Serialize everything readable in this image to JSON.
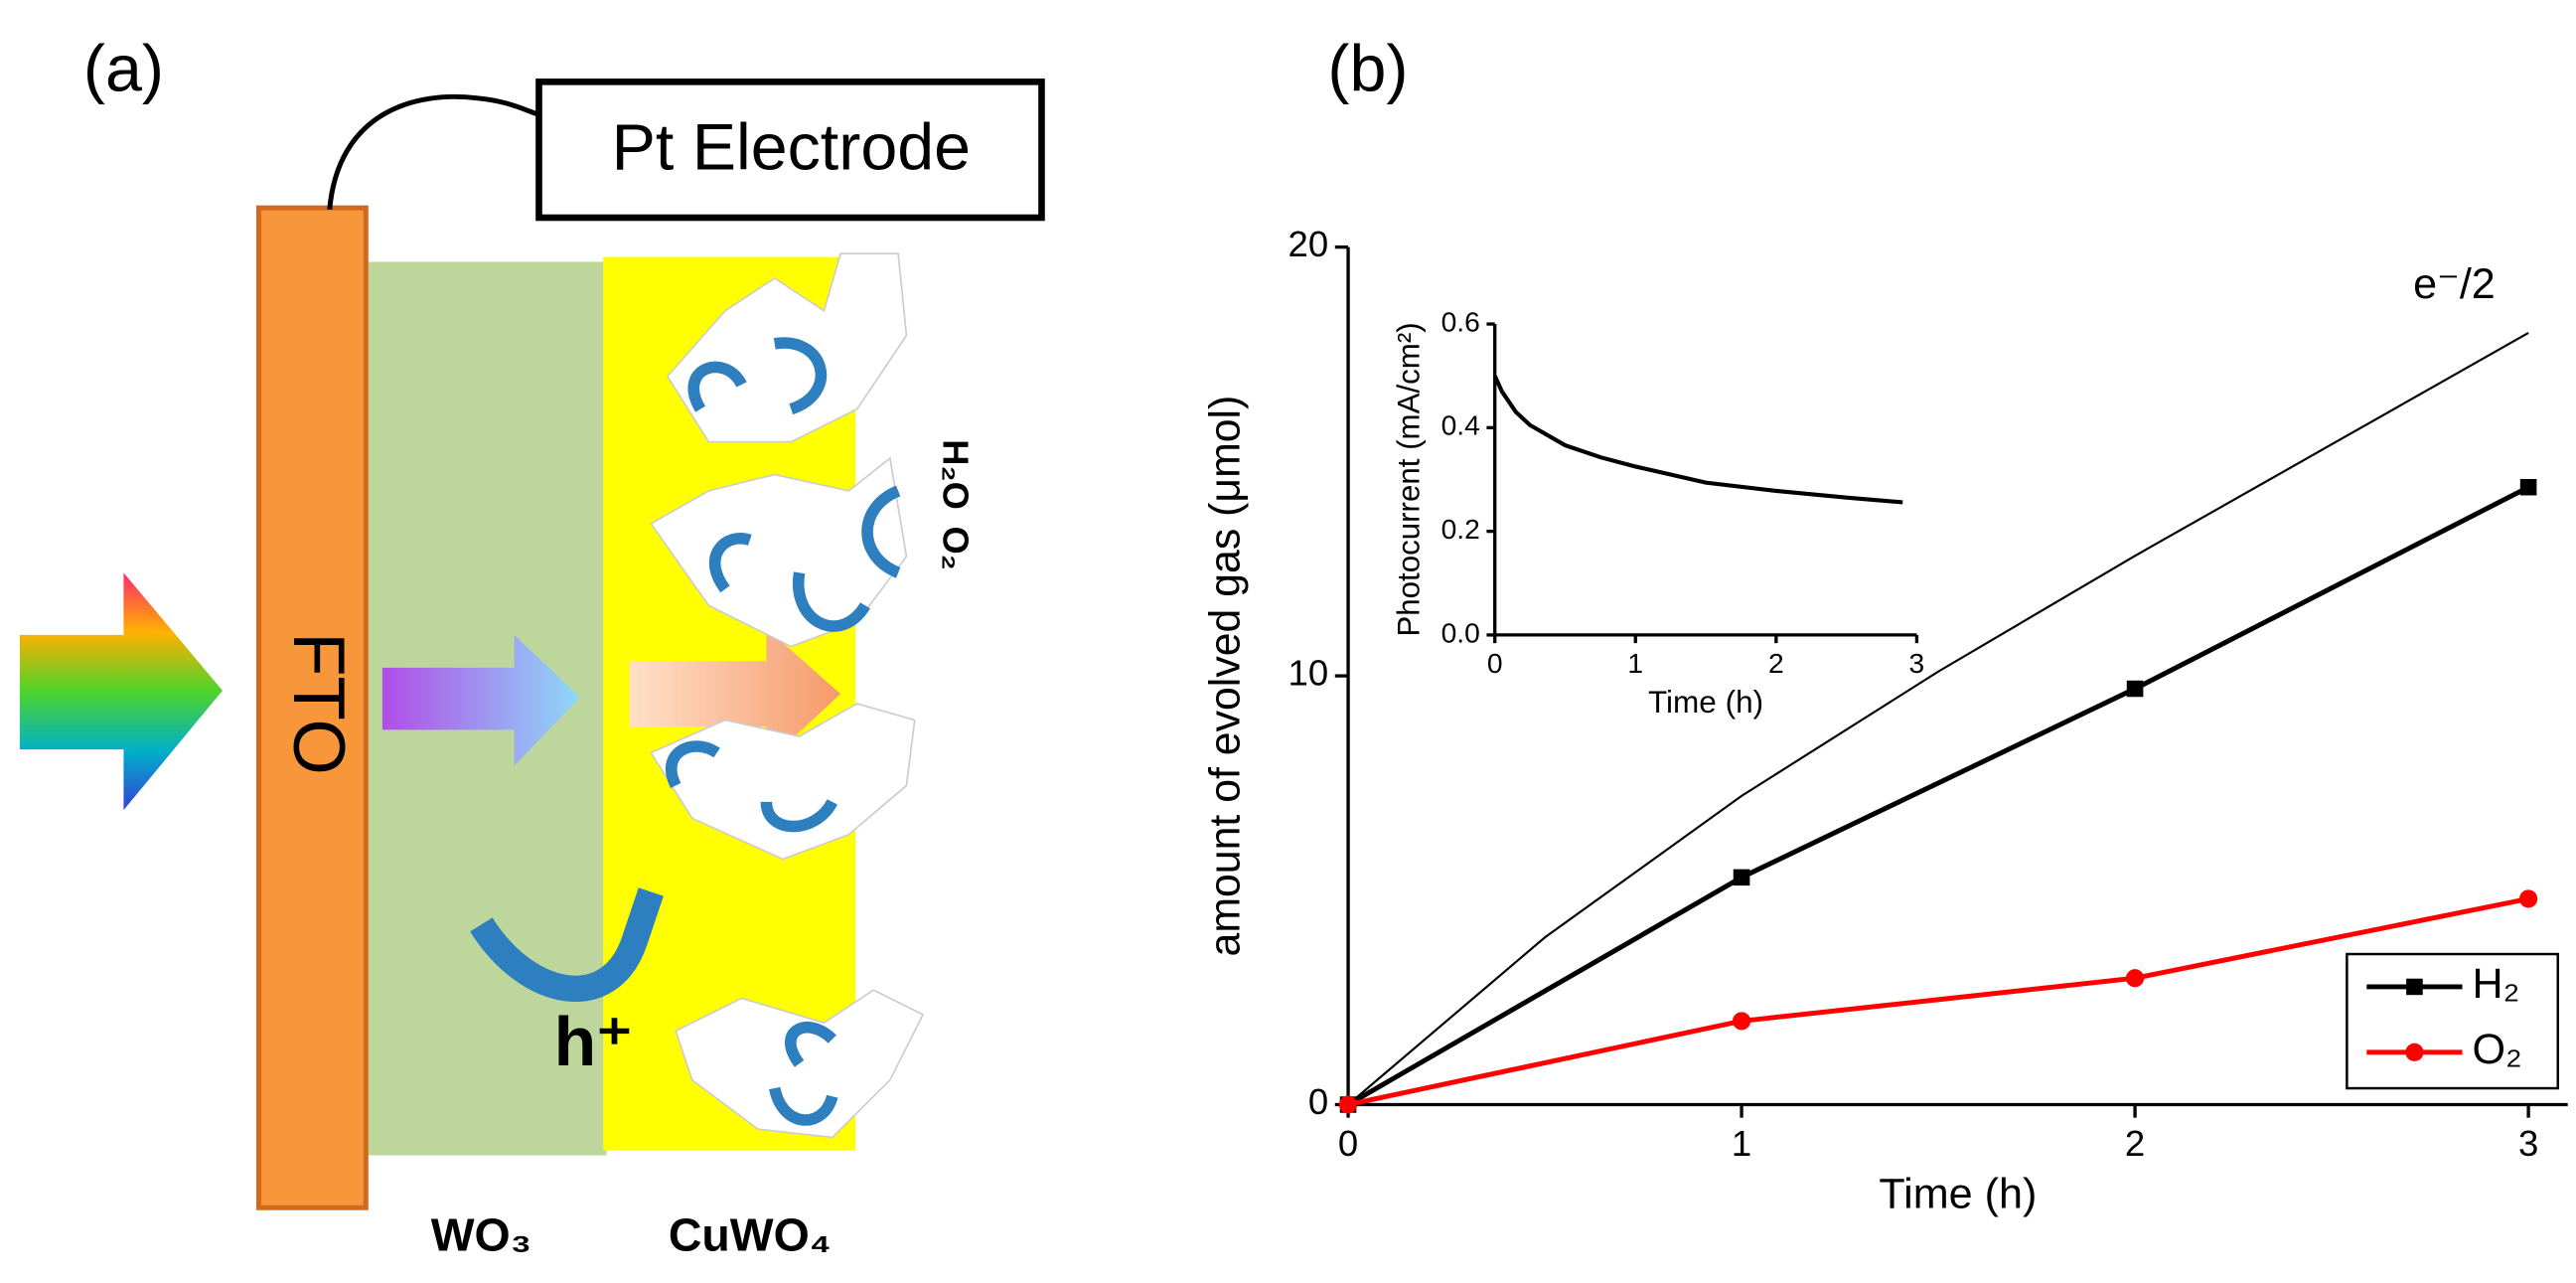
{
  "diagram": {
    "panel_label": "(a)",
    "electrode": "Pt Electrode",
    "substrate": "FTO",
    "layer_1": "WO₃",
    "layer_2": "CuWO₄",
    "reactant": "H₂O",
    "product": "O₂",
    "hole": "h⁺"
  },
  "chart_data": [
    {
      "type": "line",
      "panel_label": "(b)",
      "xlabel": "Time (h)",
      "ylabel": "amount of evolved gas (μmol)",
      "xlim": [
        0,
        3.1
      ],
      "ylim": [
        0,
        20
      ],
      "xticks": [
        0,
        1,
        2,
        3
      ],
      "yticks": [
        0,
        10,
        20
      ],
      "legend": "lower right",
      "series": [
        {
          "name": "e⁻/2",
          "color": "#000000",
          "marker": "none",
          "in_legend": false,
          "x": [
            0,
            0.5,
            1,
            1.5,
            2,
            2.5,
            3
          ],
          "values": [
            0,
            3.9,
            7.2,
            10.1,
            12.8,
            15.4,
            18.0
          ]
        },
        {
          "name": "H₂",
          "color": "#000000",
          "marker": "square",
          "in_legend": true,
          "x": [
            0,
            1,
            2,
            3
          ],
          "values": [
            0,
            5.3,
            9.7,
            14.4
          ]
        },
        {
          "name": "O₂",
          "color": "#ff0000",
          "marker": "circle",
          "in_legend": true,
          "x": [
            0,
            1,
            2,
            3
          ],
          "values": [
            0,
            1.95,
            2.95,
            4.8
          ]
        }
      ]
    },
    {
      "type": "line",
      "xlabel": "Time (h)",
      "ylabel": "Photocurrent (mA/cm²)",
      "xlim": [
        0,
        3
      ],
      "ylim": [
        0,
        0.6
      ],
      "xticks": [
        0,
        1,
        2,
        3
      ],
      "yticks": [
        {
          "value": 0,
          "label": "0.0"
        },
        0.2,
        0.4,
        0.6
      ],
      "series": [
        {
          "color": "#000000",
          "marker": "none",
          "x": [
            0,
            0.05,
            0.15,
            0.25,
            0.5,
            0.75,
            1,
            1.5,
            2,
            2.5,
            2.9
          ],
          "values": [
            0.5,
            0.47,
            0.43,
            0.405,
            0.366,
            0.343,
            0.325,
            0.294,
            0.278,
            0.265,
            0.256
          ]
        }
      ]
    }
  ]
}
